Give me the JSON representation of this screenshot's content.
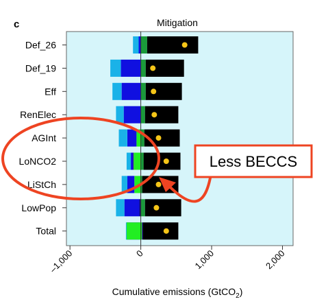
{
  "chart_data": {
    "type": "bar",
    "orientation": "horizontal",
    "stacked": true,
    "panel_label": "c",
    "title": "Mitigation",
    "xlabel": "Cumulative emissions (GtCO2)",
    "xlabel_main": "Cumulative emissions (GtCO",
    "xlabel_sub": "2",
    "xlabel_end": ")",
    "xlim": [
      -1050,
      2150
    ],
    "xticks": [
      -1000,
      0,
      1000,
      2000
    ],
    "xtick_labels": [
      "–1,000",
      "0",
      "1,000",
      "2,000"
    ],
    "grid": false,
    "categories": [
      "Def_26",
      "Def_19",
      "Eff",
      "RenElec",
      "AGInt",
      "LoNCO2",
      "LiStCh",
      "LowPop",
      "Total"
    ],
    "segment_colors": {
      "light_blue": "#1ab2e8",
      "blue": "#1010e0",
      "navy": "#101070",
      "green_dark": "#1a9a3a",
      "green_light": "#22ee22",
      "black": "#000000"
    },
    "series": [
      {
        "color": "light_blue",
        "start": [
          -110,
          -430,
          -400,
          -350,
          -310,
          -200,
          -270,
          -350,
          -210
        ],
        "end": [
          -30,
          -280,
          -270,
          -240,
          -190,
          -140,
          -190,
          -230,
          -200
        ]
      },
      {
        "color": "blue",
        "start": [
          -30,
          -280,
          -270,
          -240,
          -190,
          -140,
          -190,
          -230,
          -200
        ],
        "end": [
          0,
          0,
          0,
          0,
          -60,
          -110,
          -90,
          -20,
          -15
        ]
      },
      {
        "color": "green_light",
        "start": [
          0,
          0,
          0,
          0,
          -60,
          -100,
          -90,
          0,
          -200
        ],
        "end": [
          0,
          0,
          0,
          0,
          0,
          40,
          20,
          0,
          15
        ]
      },
      {
        "color": "navy",
        "start": [
          0,
          0,
          0,
          0,
          0,
          -110,
          -90,
          -20,
          15
        ],
        "end": [
          0,
          0,
          0,
          0,
          0,
          -100,
          -90,
          0,
          30
        ]
      },
      {
        "color": "green_dark",
        "start": [
          0,
          0,
          0,
          0,
          0,
          0,
          0,
          0,
          0
        ],
        "end": [
          90,
          70,
          70,
          60,
          50,
          40,
          20,
          60,
          0
        ]
      },
      {
        "color": "black",
        "start": [
          90,
          70,
          70,
          60,
          50,
          40,
          20,
          60,
          30
        ],
        "end": [
          810,
          610,
          580,
          530,
          550,
          560,
          530,
          570,
          530
        ]
      }
    ],
    "net_values": [
      620,
      170,
      180,
      190,
      250,
      360,
      250,
      220,
      360
    ],
    "marker_color": "#f5c518",
    "plot_background": "#d6f5fa",
    "annotation": {
      "text": "Less BECCS",
      "color": "#ee4422"
    }
  }
}
